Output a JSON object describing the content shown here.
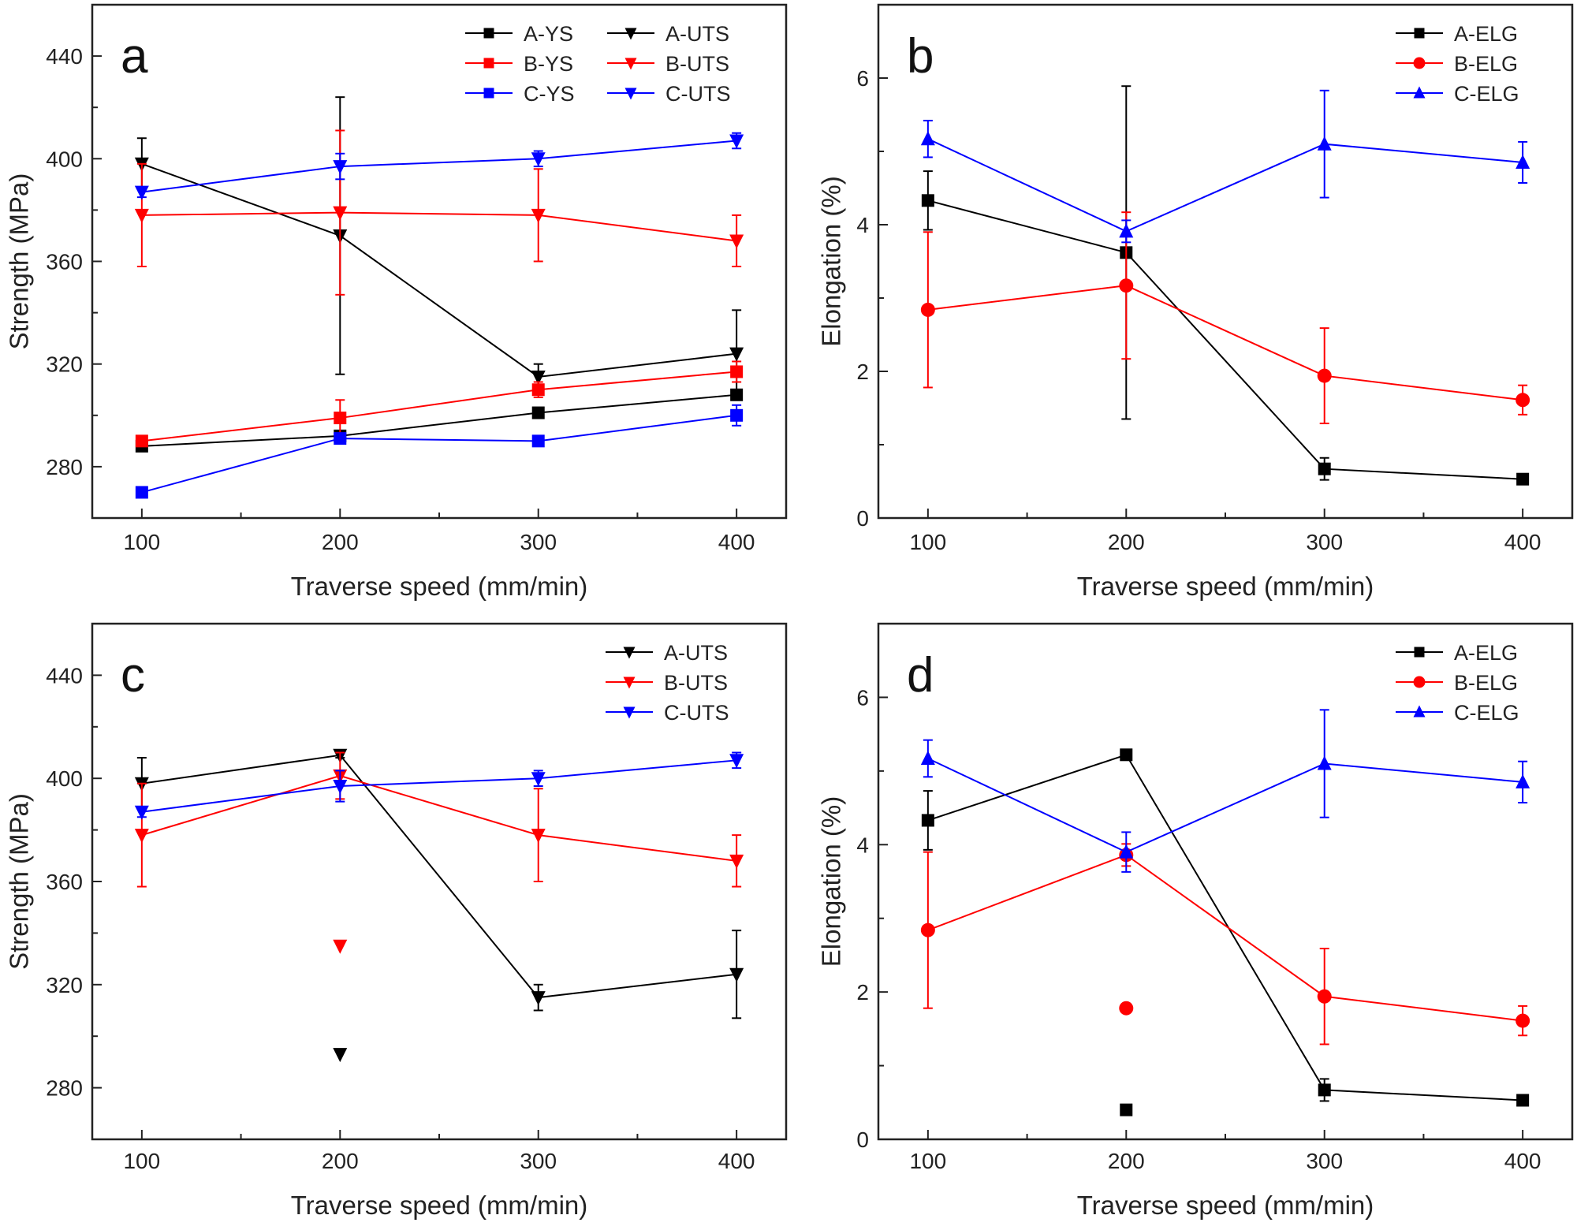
{
  "chart_data": [
    {
      "panel_label": "a",
      "type": "line",
      "xlabel": "Traverse speed (mm/min)",
      "ylabel": "Strength (MPa)",
      "x": [
        100,
        200,
        300,
        400
      ],
      "xlim": [
        75,
        425
      ],
      "ylim": [
        260,
        460
      ],
      "xticks": [
        100,
        200,
        300,
        400
      ],
      "yticks": [
        280,
        320,
        360,
        400,
        440
      ],
      "grid": false,
      "legend_position": "top-right",
      "legend_columns": 2,
      "series": [
        {
          "name": "A-YS",
          "color": "#000000",
          "marker": "square",
          "y": [
            288,
            292,
            301,
            308
          ],
          "err": [
            1,
            1,
            1,
            2
          ]
        },
        {
          "name": "A-UTS",
          "color": "#000000",
          "marker": "triangle-down",
          "y": [
            398,
            370,
            315,
            324
          ],
          "err": [
            10,
            54,
            5,
            17
          ]
        },
        {
          "name": "B-YS",
          "color": "#ff0000",
          "marker": "square",
          "y": [
            290,
            299,
            310,
            317
          ],
          "err": [
            1,
            7,
            3,
            4
          ]
        },
        {
          "name": "B-UTS",
          "color": "#ff0000",
          "marker": "triangle-down",
          "y": [
            378,
            379,
            378,
            368
          ],
          "err": [
            20,
            32,
            18,
            10
          ]
        },
        {
          "name": "C-YS",
          "color": "#0000ff",
          "marker": "square",
          "y": [
            270,
            291,
            290,
            300
          ],
          "err": [
            1,
            2,
            1,
            4
          ]
        },
        {
          "name": "C-UTS",
          "color": "#0000ff",
          "marker": "triangle-down",
          "y": [
            387,
            397,
            400,
            407
          ],
          "err": [
            2,
            5,
            3,
            3
          ]
        }
      ],
      "outliers": []
    },
    {
      "panel_label": "b",
      "type": "line",
      "xlabel": "Traverse speed (mm/min)",
      "ylabel": "Elongation (%)",
      "x": [
        100,
        200,
        300,
        400
      ],
      "xlim": [
        75,
        425
      ],
      "ylim": [
        0,
        7
      ],
      "xticks": [
        100,
        200,
        300,
        400
      ],
      "yticks": [
        0,
        2,
        4,
        6
      ],
      "grid": false,
      "legend_position": "top-right",
      "legend_columns": 1,
      "series": [
        {
          "name": "A-ELG",
          "color": "#000000",
          "marker": "square",
          "y": [
            4.33,
            3.62,
            0.67,
            0.53
          ],
          "err": [
            0.4,
            2.27,
            0.15,
            0.03
          ]
        },
        {
          "name": "B-ELG",
          "color": "#ff0000",
          "marker": "circle",
          "y": [
            2.84,
            3.17,
            1.94,
            1.61
          ],
          "err": [
            1.06,
            1.0,
            0.65,
            0.2
          ]
        },
        {
          "name": "C-ELG",
          "color": "#0000ff",
          "marker": "triangle-up",
          "y": [
            5.17,
            3.91,
            5.1,
            4.85
          ],
          "err": [
            0.25,
            0.15,
            0.73,
            0.28
          ]
        }
      ],
      "outliers": []
    },
    {
      "panel_label": "c",
      "type": "line",
      "xlabel": "Traverse speed (mm/min)",
      "ylabel": "Strength (MPa)",
      "x": [
        100,
        200,
        300,
        400
      ],
      "xlim": [
        75,
        425
      ],
      "ylim": [
        260,
        460
      ],
      "xticks": [
        100,
        200,
        300,
        400
      ],
      "yticks": [
        280,
        320,
        360,
        400,
        440
      ],
      "grid": false,
      "legend_position": "top-right",
      "legend_columns": 1,
      "series": [
        {
          "name": "A-UTS",
          "color": "#000000",
          "marker": "triangle-down",
          "y": [
            398,
            409,
            315,
            324
          ],
          "err": [
            10,
            1,
            5,
            17
          ]
        },
        {
          "name": "B-UTS",
          "color": "#ff0000",
          "marker": "triangle-down",
          "y": [
            378,
            401,
            378,
            368
          ],
          "err": [
            20,
            9,
            18,
            10
          ]
        },
        {
          "name": "C-UTS",
          "color": "#0000ff",
          "marker": "triangle-down",
          "y": [
            387,
            397,
            400,
            407
          ],
          "err": [
            2,
            6,
            3,
            3
          ]
        }
      ],
      "outliers": [
        {
          "series": "A-UTS",
          "color": "#000000",
          "marker": "triangle-down",
          "x": 200,
          "y": 293
        },
        {
          "series": "B-UTS",
          "color": "#ff0000",
          "marker": "triangle-down",
          "x": 200,
          "y": 335
        }
      ]
    },
    {
      "panel_label": "d",
      "type": "line",
      "xlabel": "Traverse speed (mm/min)",
      "ylabel": "Elongation (%)",
      "x": [
        100,
        200,
        300,
        400
      ],
      "xlim": [
        75,
        425
      ],
      "ylim": [
        0,
        7
      ],
      "xticks": [
        100,
        200,
        300,
        400
      ],
      "yticks": [
        0,
        2,
        4,
        6
      ],
      "grid": false,
      "legend_position": "top-right",
      "legend_columns": 1,
      "series": [
        {
          "name": "A-ELG",
          "color": "#000000",
          "marker": "square",
          "y": [
            4.33,
            5.22,
            0.67,
            0.53
          ],
          "err": [
            0.4,
            0,
            0.15,
            0.03
          ]
        },
        {
          "name": "B-ELG",
          "color": "#ff0000",
          "marker": "circle",
          "y": [
            2.84,
            3.86,
            1.94,
            1.61
          ],
          "err": [
            1.06,
            0.15,
            0.65,
            0.2
          ]
        },
        {
          "name": "C-ELG",
          "color": "#0000ff",
          "marker": "triangle-up",
          "y": [
            5.17,
            3.9,
            5.1,
            4.85
          ],
          "err": [
            0.25,
            0.27,
            0.73,
            0.28
          ]
        }
      ],
      "outliers": [
        {
          "series": "A-ELG",
          "color": "#000000",
          "marker": "square",
          "x": 200,
          "y": 0.4
        },
        {
          "series": "B-ELG",
          "color": "#ff0000",
          "marker": "circle",
          "x": 200,
          "y": 1.78
        }
      ]
    }
  ]
}
